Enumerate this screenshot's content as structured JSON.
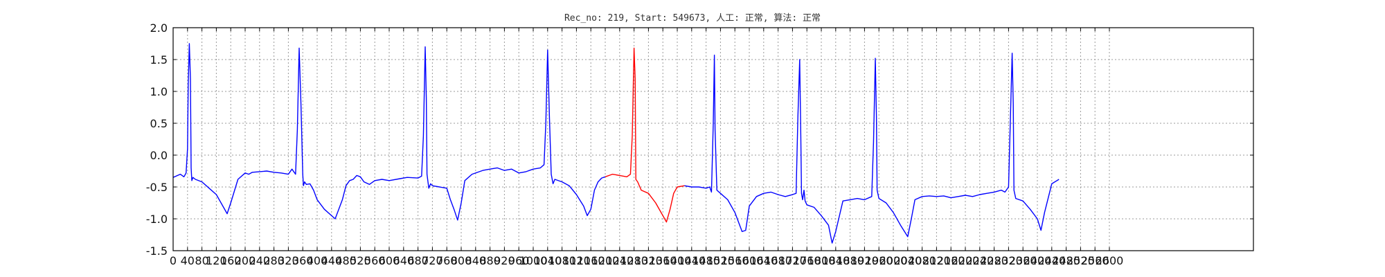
{
  "chart_data": {
    "type": "line",
    "title": "Rec_no: 219, Start: 549673, 人工: 正常, 算法: 正常",
    "xlabel": "",
    "ylabel": "",
    "xlim": [
      0,
      3000
    ],
    "ylim": [
      -1.5,
      2.0
    ],
    "grid": true,
    "y_ticks": [
      2.0,
      1.5,
      1.0,
      0.5,
      0.0,
      -0.5,
      -1.0,
      -1.5
    ],
    "y_tick_labels": [
      "2.0",
      "1.5",
      "1.0",
      "0.5",
      "0.0",
      "-0.5",
      "-1.0",
      "-1.5"
    ],
    "x_ticks": [
      0,
      40,
      80,
      120,
      160,
      200,
      240,
      280,
      320,
      360,
      400,
      440,
      480,
      520,
      560,
      600,
      640,
      680,
      720,
      760,
      800,
      840,
      880,
      920,
      960,
      1000,
      1040,
      1080,
      1120,
      1160,
      1200,
      1240,
      1280,
      1320,
      1360,
      1400,
      1440,
      1480,
      1520,
      1560,
      1600,
      1640,
      1680,
      1720,
      1760,
      1800,
      1840,
      1880,
      1920,
      1960,
      2000,
      2040,
      2080,
      2120,
      2160,
      2200,
      2240,
      2280,
      2320,
      2360,
      2400,
      2440,
      2480,
      2520,
      2560,
      2600
    ],
    "x_tick_labels": [
      "0",
      "40",
      "80",
      "120",
      "160",
      "200",
      "240",
      "280",
      "320",
      "360",
      "400",
      "440",
      "480",
      "520",
      "560",
      "600",
      "640",
      "680",
      "720",
      "760",
      "800",
      "840",
      "880",
      "920",
      "960",
      "1000",
      "1040",
      "1080",
      "1120",
      "1160",
      "1200",
      "1240",
      "1280",
      "1320",
      "1360",
      "1400",
      "1440",
      "1480",
      "1520",
      "1560",
      "1600",
      "1640",
      "1680",
      "1720",
      "1760",
      "1800",
      "1840",
      "1880",
      "1920",
      "1960",
      "2000",
      "2040",
      "2080",
      "2120",
      "2160",
      "2200",
      "2240",
      "2280",
      "2320",
      "2360",
      "2400",
      "2440",
      "2480",
      "2520",
      "2560",
      "2600"
    ],
    "series": [
      {
        "color": "#0000ff",
        "x": [
          0,
          20,
          30,
          36,
          40,
          42,
          45,
          48,
          50,
          52,
          55,
          62,
          80,
          100,
          120,
          140,
          150,
          160,
          180,
          200,
          210,
          220,
          240,
          260,
          280,
          300,
          320,
          330,
          340,
          345,
          350,
          355,
          360,
          362,
          365,
          370,
          380,
          390,
          400,
          420,
          450,
          470,
          480,
          490,
          500,
          510,
          520,
          530,
          545,
          560,
          580,
          600,
          630,
          650,
          680,
          690,
          695,
          700,
          703,
          705,
          710,
          715,
          720,
          740,
          760,
          770,
          780,
          790,
          800,
          810,
          830,
          860,
          880,
          900,
          920,
          940,
          960,
          980,
          1000,
          1020,
          1030,
          1035,
          1040,
          1045,
          1050,
          1055,
          1060,
          1080,
          1100,
          1120,
          1140,
          1150,
          1160,
          1170,
          1180,
          1190,
          1200
        ],
        "y": [
          -0.35,
          -0.3,
          -0.34,
          -0.28,
          0.1,
          1.1,
          1.75,
          1.2,
          -0.2,
          -0.4,
          -0.35,
          -0.38,
          -0.42,
          -0.52,
          -0.62,
          -0.82,
          -0.92,
          -0.75,
          -0.38,
          -0.28,
          -0.3,
          -0.27,
          -0.26,
          -0.25,
          -0.27,
          -0.28,
          -0.3,
          -0.22,
          -0.3,
          0.4,
          1.68,
          0.8,
          -0.3,
          -0.48,
          -0.42,
          -0.46,
          -0.45,
          -0.55,
          -0.7,
          -0.85,
          -1.0,
          -0.7,
          -0.48,
          -0.4,
          -0.38,
          -0.32,
          -0.34,
          -0.42,
          -0.46,
          -0.4,
          -0.38,
          -0.4,
          -0.37,
          -0.35,
          -0.36,
          -0.33,
          0.3,
          1.7,
          0.9,
          -0.3,
          -0.52,
          -0.45,
          -0.48,
          -0.5,
          -0.52,
          -0.7,
          -0.85,
          -1.02,
          -0.75,
          -0.4,
          -0.3,
          -0.24,
          -0.22,
          -0.2,
          -0.24,
          -0.22,
          -0.28,
          -0.26,
          -0.22,
          -0.2,
          -0.15,
          0.5,
          1.65,
          0.6,
          -0.3,
          -0.45,
          -0.38,
          -0.42,
          -0.48,
          -0.62,
          -0.8,
          -0.95,
          -0.85,
          -0.55,
          -0.42,
          -0.36,
          -0.34
        ]
      },
      {
        "color": "#ff0000",
        "x": [
          1200,
          1220,
          1240,
          1260,
          1270,
          1275,
          1280,
          1283,
          1285,
          1290,
          1300,
          1320,
          1340,
          1360,
          1370,
          1380,
          1390,
          1400,
          1420
        ],
        "y": [
          -0.34,
          -0.3,
          -0.32,
          -0.34,
          -0.3,
          0.3,
          1.68,
          1.2,
          -0.38,
          -0.42,
          -0.55,
          -0.6,
          -0.75,
          -0.95,
          -1.05,
          -0.85,
          -0.6,
          -0.5,
          -0.48
        ]
      },
      {
        "color": "#0000ff",
        "x": [
          1420,
          1440,
          1460,
          1480,
          1490,
          1495,
          1500,
          1503,
          1505,
          1510,
          1520,
          1540,
          1560,
          1580,
          1590,
          1600,
          1620,
          1640,
          1660,
          1680,
          1700,
          1720,
          1730,
          1735,
          1740,
          1743,
          1745,
          1748,
          1752,
          1755,
          1760,
          1780,
          1800,
          1820,
          1830,
          1840,
          1860,
          1880,
          1900,
          1920,
          1940,
          1945,
          1950,
          1953,
          1955,
          1960,
          1980,
          2000,
          2020,
          2040,
          2050,
          2060,
          2080,
          2100,
          2120,
          2140,
          2160,
          2180,
          2200,
          2220,
          2240,
          2260,
          2280,
          2300,
          2310,
          2320,
          2330,
          2333,
          2335,
          2340,
          2360,
          2380,
          2400,
          2410,
          2420,
          2440,
          2460
        ],
        "y": [
          -0.48,
          -0.5,
          -0.5,
          -0.52,
          -0.5,
          -0.58,
          0.5,
          1.57,
          0.4,
          -0.55,
          -0.6,
          -0.7,
          -0.9,
          -1.2,
          -1.18,
          -0.8,
          -0.65,
          -0.6,
          -0.58,
          -0.62,
          -0.65,
          -0.62,
          -0.6,
          0.6,
          1.5,
          0.3,
          -0.6,
          -0.7,
          -0.55,
          -0.72,
          -0.78,
          -0.82,
          -0.95,
          -1.1,
          -1.38,
          -1.2,
          -0.72,
          -0.7,
          -0.68,
          -0.7,
          -0.65,
          0.2,
          1.52,
          0.6,
          -0.55,
          -0.68,
          -0.75,
          -0.9,
          -1.1,
          -1.28,
          -1.0,
          -0.7,
          -0.65,
          -0.64,
          -0.65,
          -0.64,
          -0.67,
          -0.65,
          -0.63,
          -0.65,
          -0.62,
          -0.6,
          -0.58,
          -0.55,
          -0.58,
          -0.5,
          1.6,
          0.8,
          -0.55,
          -0.68,
          -0.72,
          -0.85,
          -1.0,
          -1.18,
          -0.9,
          -0.45,
          -0.38
        ]
      }
    ]
  }
}
